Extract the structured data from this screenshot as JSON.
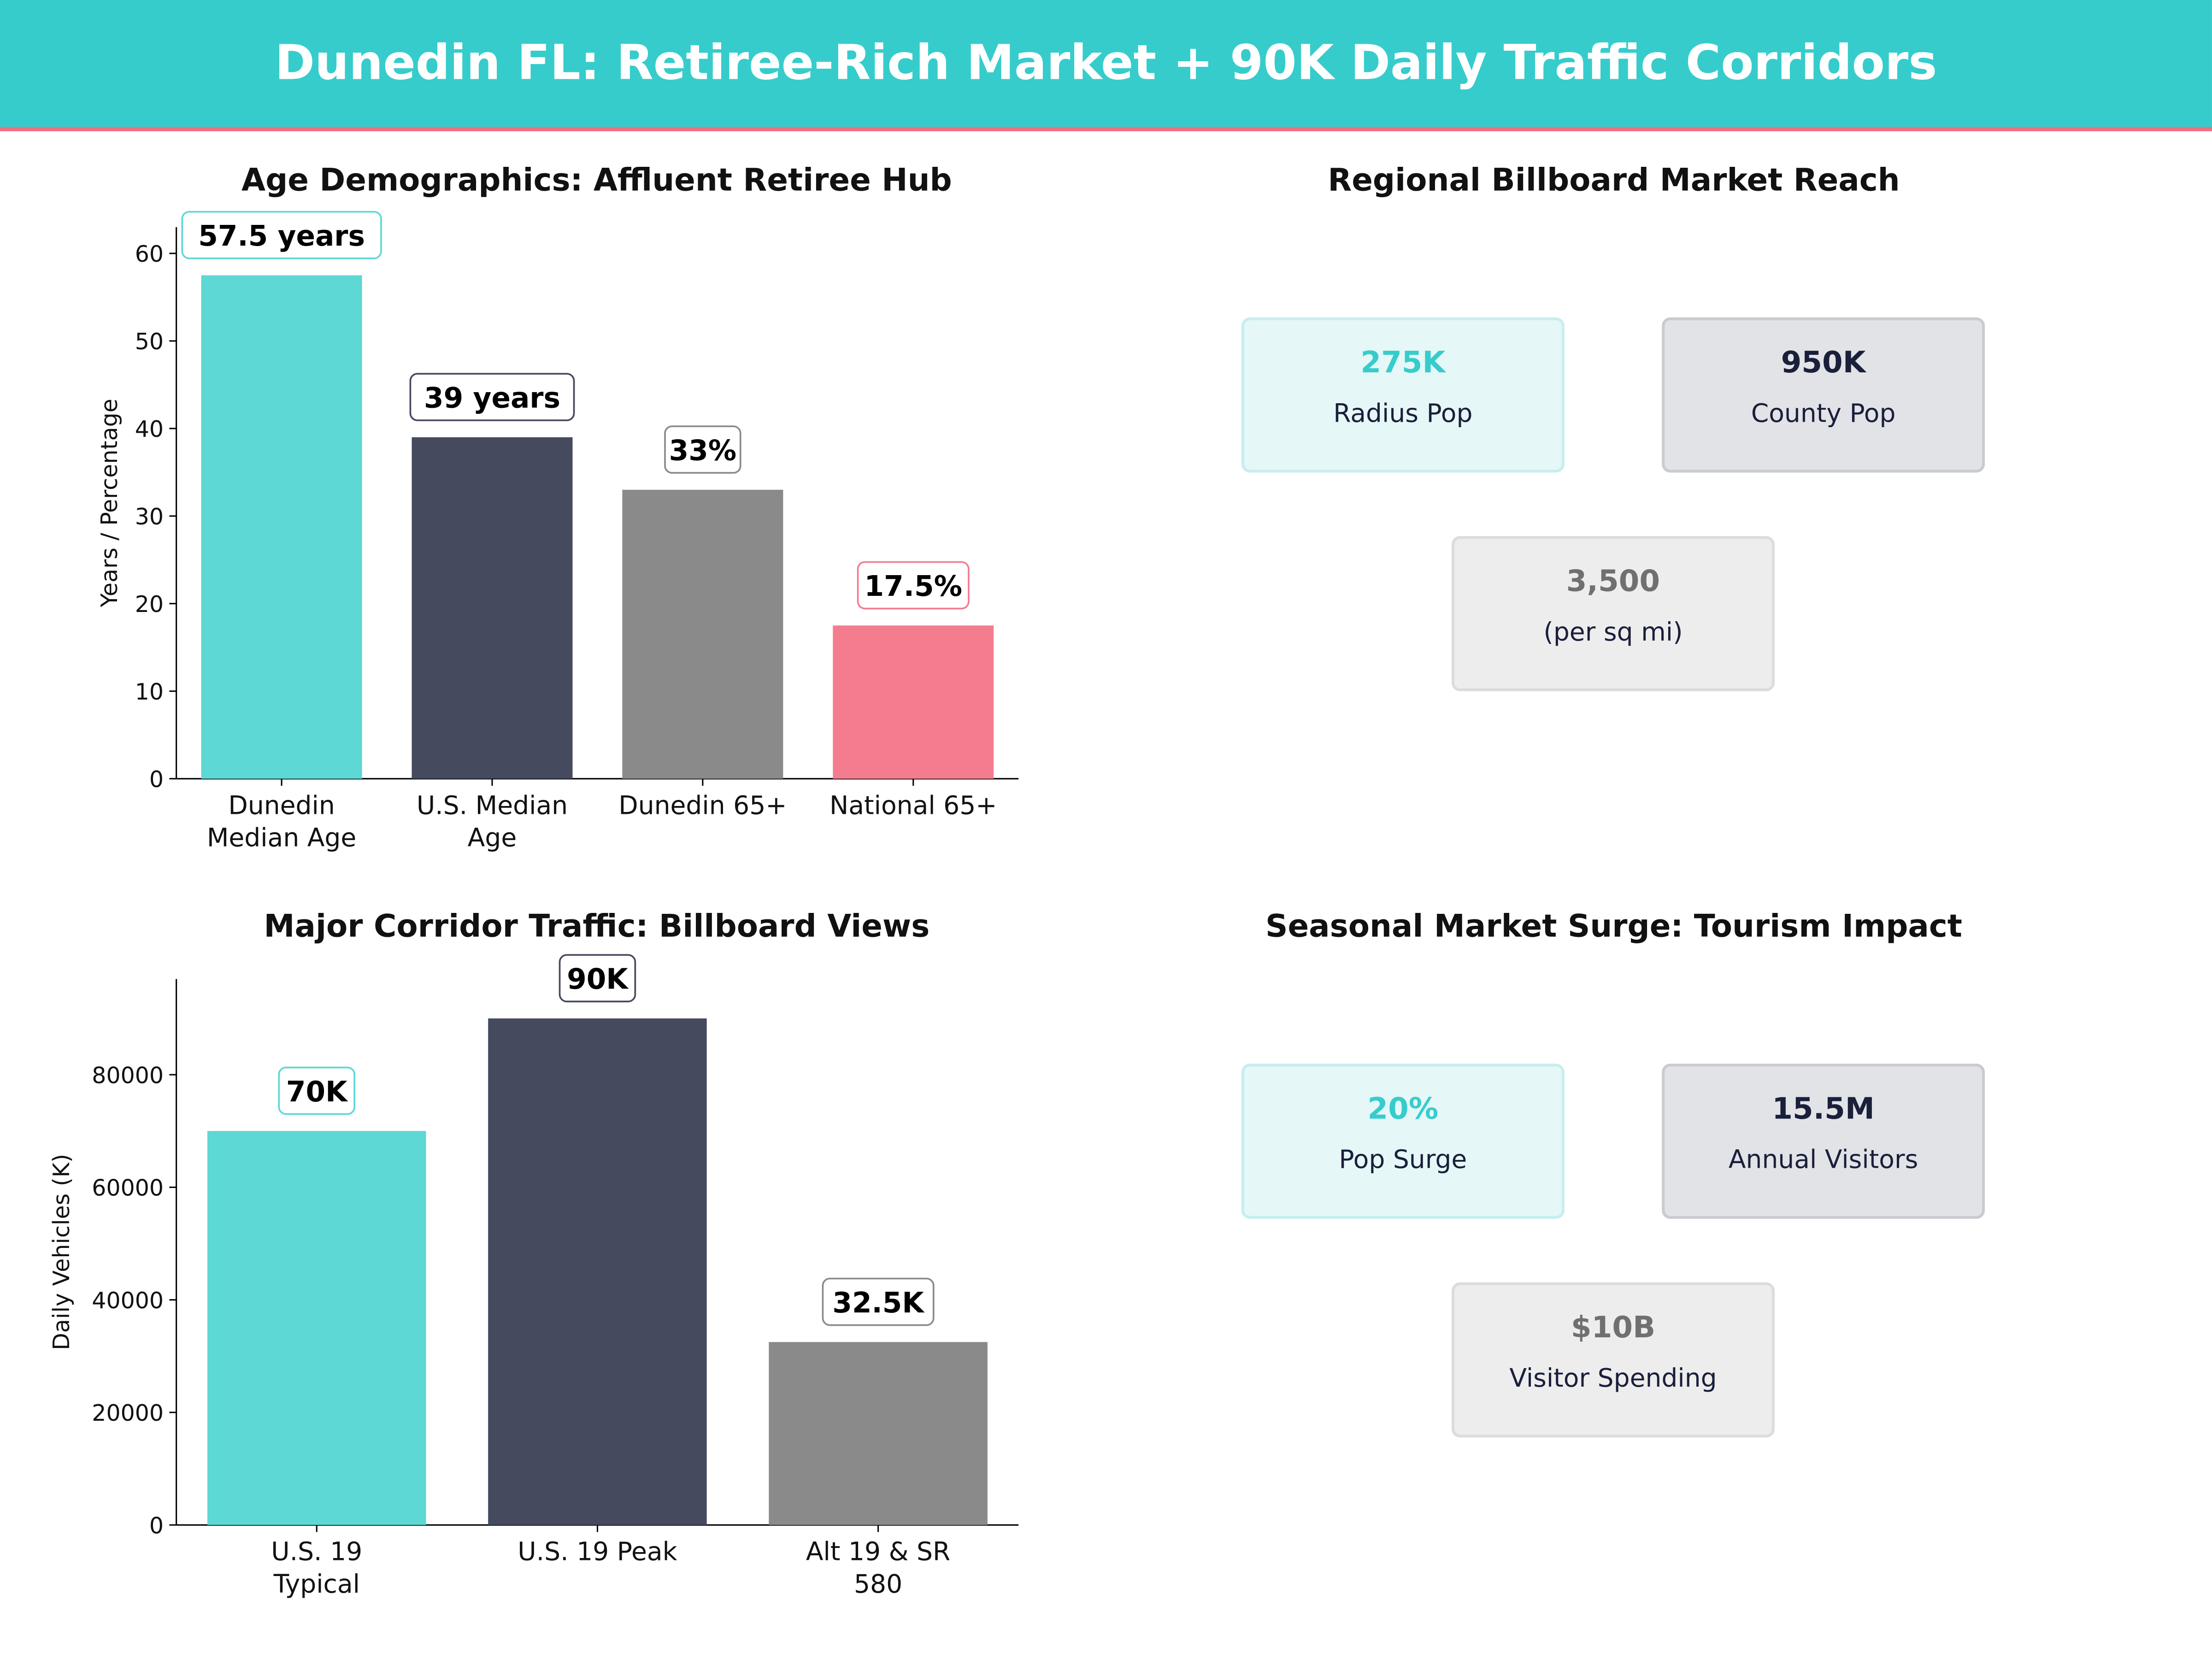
{
  "title": "Dunedin FL: Retiree-Rich Market + 90K Daily Traffic Corridors",
  "colors": {
    "teal": "#36CCCC",
    "dark": "#1A1F3A",
    "gray": "#707070",
    "pink": "#F07080"
  },
  "chart_data": [
    {
      "type": "bar",
      "title": "Age Demographics: Affluent Retiree Hub",
      "ylabel": "Years / Percentage",
      "xlabel": "",
      "categories": [
        "Dunedin\nMedian Age",
        "U.S. Median\nAge",
        "Dunedin 65+",
        "National 65+"
      ],
      "values": [
        57.5,
        39,
        33,
        17.5
      ],
      "data_labels": [
        "57.5 years",
        "39 years",
        "33%",
        "17.5%"
      ],
      "bar_colors": [
        "#5DD8D4",
        "#454A5F",
        "#8A8A8A",
        "#F47C8F"
      ],
      "yticks": [
        0,
        10,
        20,
        30,
        40,
        50,
        60
      ],
      "ylim": [
        0,
        63
      ],
      "grid": false
    },
    {
      "type": "bar",
      "title": "Major Corridor Traffic: Billboard Views",
      "ylabel": "Daily Vehicles (K)",
      "xlabel": "",
      "categories": [
        "U.S. 19\nTypical",
        "U.S. 19 Peak",
        "Alt 19 & SR\n580"
      ],
      "values": [
        70000,
        90000,
        32500
      ],
      "data_labels": [
        "70K",
        "90K",
        "32.5K"
      ],
      "bar_colors": [
        "#5DD8D4",
        "#454A5F",
        "#8A8A8A"
      ],
      "yticks": [
        0,
        20000,
        40000,
        60000,
        80000
      ],
      "ylim": [
        0,
        97000
      ],
      "grid": false
    }
  ],
  "reach": {
    "title": "Regional Billboard Market Reach",
    "cards": [
      {
        "value": "275K",
        "label": "Radius Pop",
        "style": "teal"
      },
      {
        "value": "950K",
        "label": "County Pop",
        "style": "dark"
      },
      {
        "value": "3,500",
        "label": "(per sq mi)",
        "style": "gray"
      }
    ]
  },
  "seasonal": {
    "title": "Seasonal Market Surge: Tourism Impact",
    "cards": [
      {
        "value": "20%",
        "label": "Pop Surge",
        "style": "teal"
      },
      {
        "value": "15.5M",
        "label": "Annual Visitors",
        "style": "dark"
      },
      {
        "value": "$10B",
        "label": "Visitor Spending",
        "style": "gray"
      }
    ]
  }
}
